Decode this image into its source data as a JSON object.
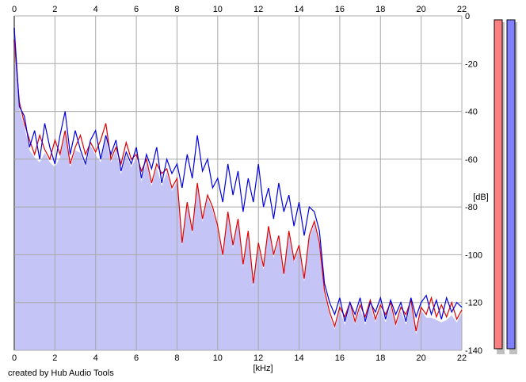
{
  "chart_data": {
    "type": "line",
    "xlabel": "[kHz]",
    "ylabel": "[dB]",
    "xlim": [
      0,
      22
    ],
    "ylim": [
      -140,
      0
    ],
    "x_ticks": [
      "0",
      "2",
      "4",
      "6",
      "8",
      "10",
      "12",
      "14",
      "16",
      "18",
      "20",
      "22"
    ],
    "y_ticks": [
      "0",
      "-20",
      "-40",
      "-60",
      "-80",
      "-100",
      "-120",
      "-140"
    ],
    "grid": true,
    "x_step": 0.25,
    "series": [
      {
        "color": "#0000e0",
        "values": [
          -5,
          -38,
          -42,
          -55,
          -48,
          -60,
          -45,
          -55,
          -62,
          -50,
          -40,
          -58,
          -48,
          -56,
          -62,
          -52,
          -48,
          -60,
          -50,
          -58,
          -52,
          -65,
          -57,
          -62,
          -55,
          -68,
          -58,
          -64,
          -55,
          -70,
          -60,
          -66,
          -62,
          -72,
          -58,
          -68,
          -50,
          -65,
          -60,
          -72,
          -68,
          -78,
          -62,
          -75,
          -65,
          -82,
          -68,
          -78,
          -62,
          -80,
          -72,
          -85,
          -70,
          -82,
          -75,
          -88,
          -78,
          -92,
          -80,
          -82,
          -90,
          -112,
          -120,
          -125,
          -118,
          -128,
          -120,
          -125,
          -118,
          -128,
          -120,
          -124,
          -118,
          -127,
          -119,
          -125,
          -120,
          -128,
          -118,
          -126,
          -120,
          -117,
          -125,
          -119,
          -127,
          -118,
          -124,
          -120,
          -122
        ]
      },
      {
        "color": "#e00000",
        "values": [
          -10,
          -36,
          -45,
          -52,
          -58,
          -50,
          -56,
          -60,
          -52,
          -58,
          -48,
          -62,
          -55,
          -50,
          -58,
          -53,
          -57,
          -52,
          -45,
          -60,
          -55,
          -62,
          -53,
          -60,
          -58,
          -65,
          -60,
          -70,
          -62,
          -66,
          -64,
          -72,
          -68,
          -95,
          -78,
          -90,
          -70,
          -85,
          -75,
          -80,
          -88,
          -100,
          -82,
          -96,
          -85,
          -104,
          -90,
          -112,
          -95,
          -105,
          -88,
          -100,
          -92,
          -108,
          -90,
          -102,
          -96,
          -110,
          -92,
          -86,
          -95,
          -115,
          -124,
          -130,
          -122,
          -126,
          -120,
          -128,
          -121,
          -126,
          -119,
          -127,
          -121,
          -125,
          -120,
          -129,
          -122,
          -125,
          -119,
          -132,
          -122,
          -125,
          -118,
          -126,
          -121,
          -126,
          -120,
          -127,
          -123
        ]
      }
    ],
    "fill_color": "#c4c4f6",
    "meters": [
      {
        "color": "#ff8080",
        "level": 1.0
      },
      {
        "color": "#8080ff",
        "level": 1.0
      }
    ]
  },
  "footer": {
    "credit": "created by Hub Audio Tools"
  }
}
